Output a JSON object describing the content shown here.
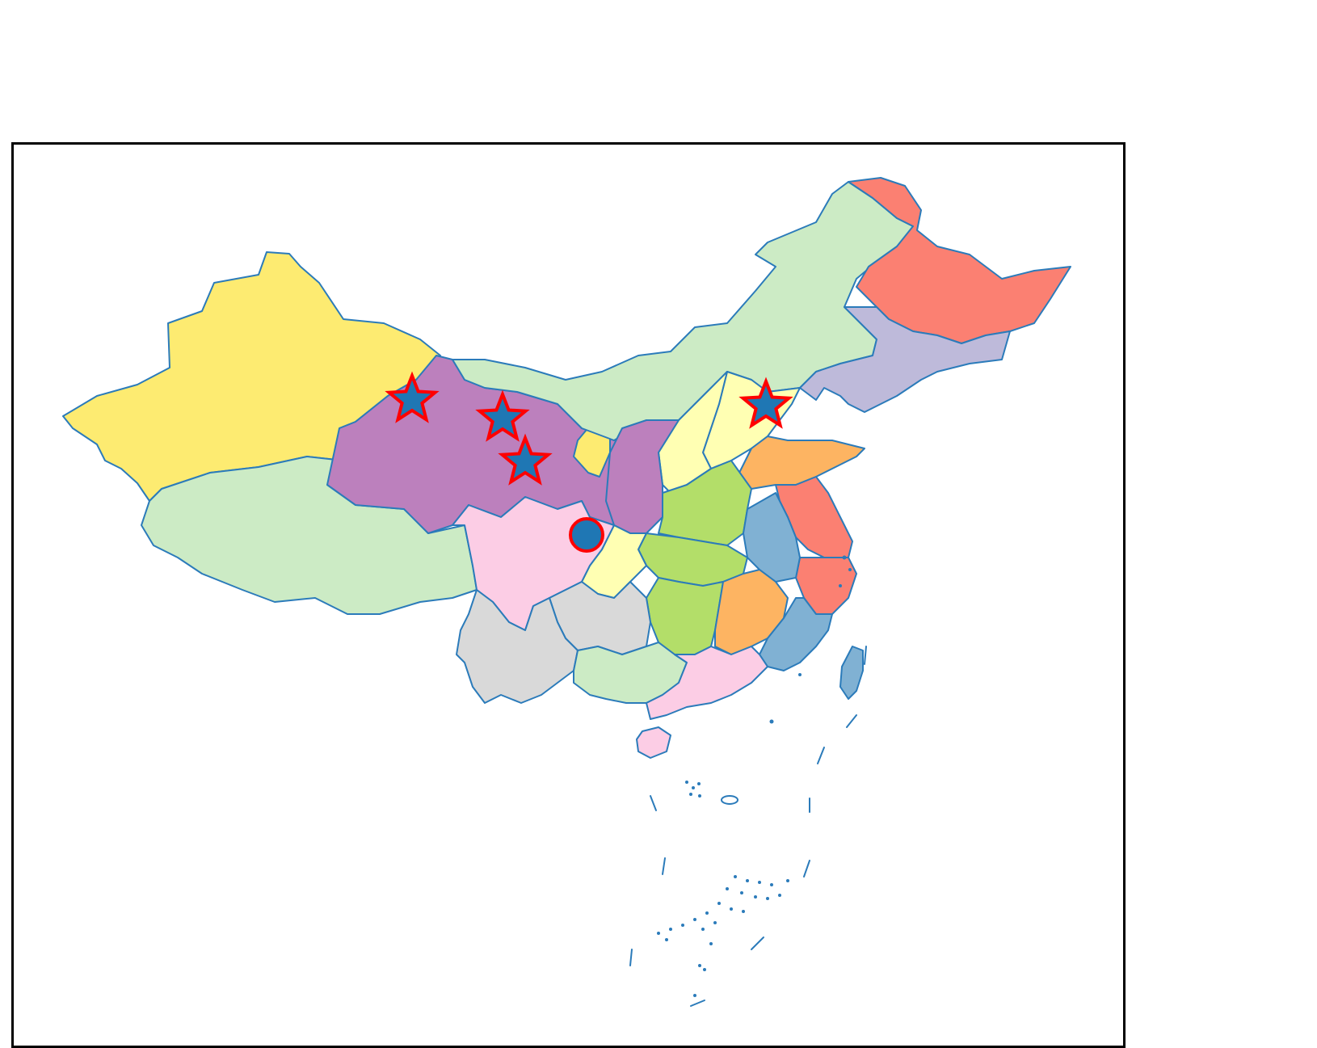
{
  "map": {
    "colors": {
      "yellow": "#fdeb71",
      "light_green": "#ccebc5",
      "purple": "#bc80bd",
      "salmon": "#fb8072",
      "lavender": "#bebada",
      "pale_yellow": "#ffffb3",
      "orange": "#fdb462",
      "lime": "#b3de69",
      "steel_blue": "#80b1d3",
      "pink": "#fccde5",
      "gray": "#d9d9d9",
      "border": "#2b7bba"
    },
    "markers": {
      "star_count": 4,
      "circle_count": 1,
      "fill": "#1f77b4",
      "edge": "#ff0000"
    }
  }
}
